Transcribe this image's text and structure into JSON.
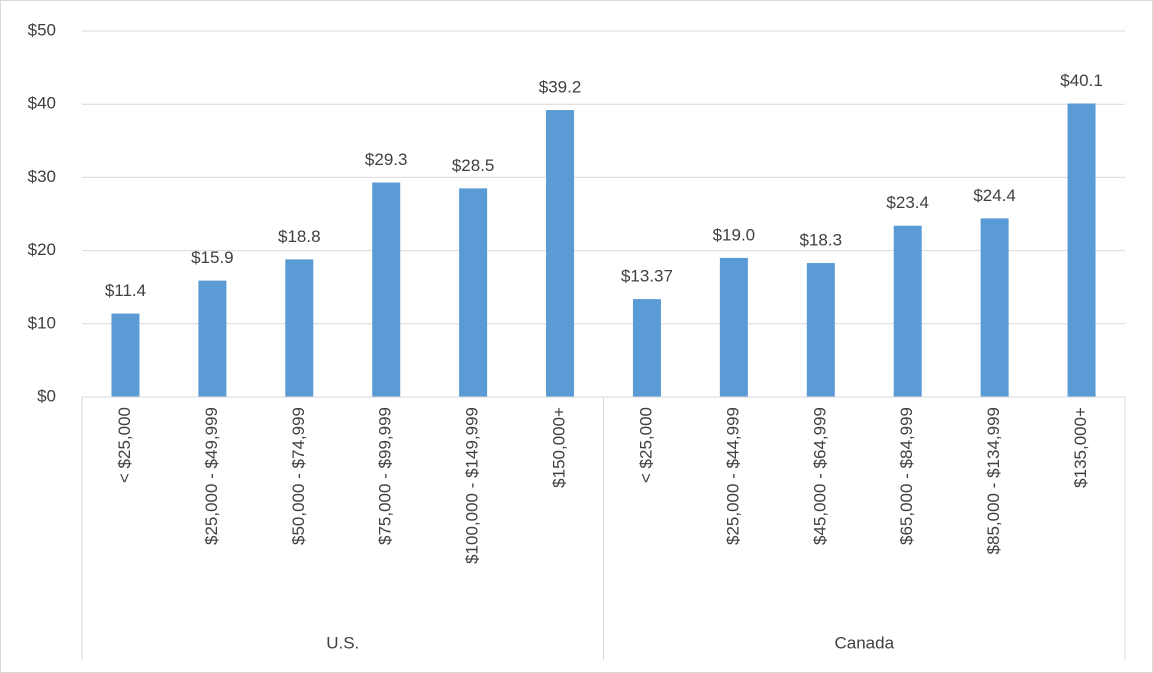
{
  "chart_data": {
    "type": "bar",
    "color": "#5b9bd5",
    "grid": true,
    "ylim": [
      0,
      50
    ],
    "yticks": [
      {
        "value": 0,
        "label": "$0"
      },
      {
        "value": 10,
        "label": "$10"
      },
      {
        "value": 20,
        "label": "$20"
      },
      {
        "value": 30,
        "label": "$30"
      },
      {
        "value": 40,
        "label": "$40"
      },
      {
        "value": 50,
        "label": "$50"
      }
    ],
    "groups": [
      {
        "name": "U.S.",
        "categories": [
          "< $25,000",
          "$25,000 - $49,999",
          "$50,000 - $74,999",
          "$75,000 - $99,999",
          "$100,000 - $149,999",
          "$150,000+"
        ],
        "values": [
          11.4,
          15.9,
          18.8,
          29.3,
          28.5,
          39.2
        ],
        "value_labels": [
          "$11.4",
          "$15.9",
          "$18.8",
          "$29.3",
          "$28.5",
          "$39.2"
        ]
      },
      {
        "name": "Canada",
        "categories": [
          "< $25,000",
          "$25,000 - $44,999",
          "$45,000 - $64,999",
          "$65,000 - $84,999",
          "$85,000 - $134,999",
          "$135,000+"
        ],
        "values": [
          13.37,
          19.0,
          18.3,
          23.4,
          24.4,
          40.1
        ],
        "value_labels": [
          "$13.37",
          "$19.0",
          "$18.3",
          "$23.4",
          "$24.4",
          "$40.1"
        ]
      }
    ]
  }
}
